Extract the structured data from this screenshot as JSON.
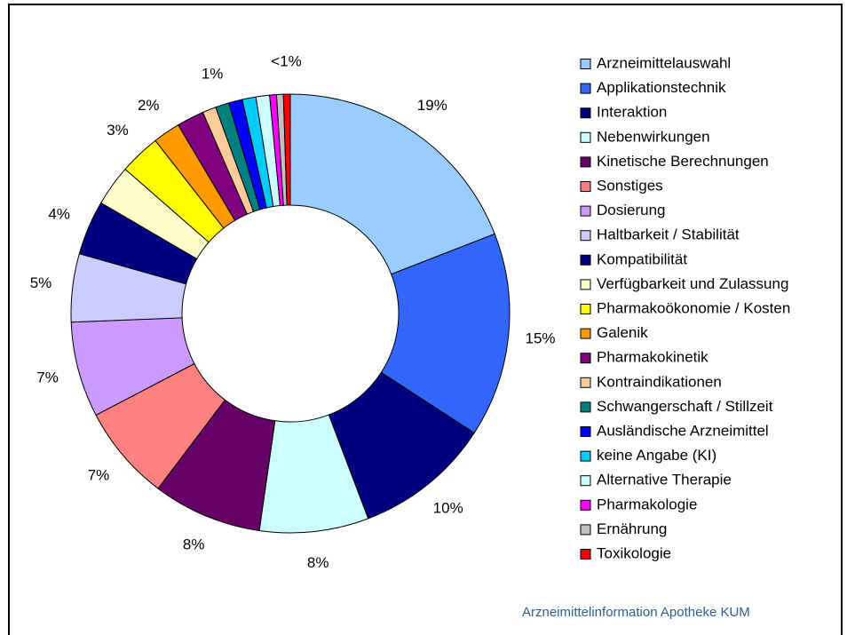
{
  "chart_data": {
    "type": "donut",
    "categories": [
      "Arzneimittelauswahl",
      "Applikationstechnik",
      "Interaktion",
      "Nebenwirkungen",
      "Kinetische Berechnungen",
      "Sonstiges",
      "Dosierung",
      "Haltbarkeit / Stabilität",
      "Kompatibilität",
      "Verfügbarkeit und Zulassung",
      "Pharmakoökonomie / Kosten",
      "Galenik",
      "Pharmakokinetik",
      "Kontraindikationen",
      "Schwangerschaft / Stillzeit",
      "Ausländische Arzneimittel",
      "keine Angabe (KI)",
      "Alternative Therapie",
      "Pharmakologie",
      "Ernährung",
      "Toxikologie"
    ],
    "values": [
      19,
      15,
      10,
      8,
      8,
      7,
      7,
      5,
      4,
      3,
      3,
      2,
      2,
      1,
      1,
      1,
      1,
      1,
      0.5,
      0.5,
      0.5
    ],
    "value_labels": [
      "19%",
      "15%",
      "10%",
      "8%",
      "8%",
      "7%",
      "7%",
      "5%",
      "4%",
      null,
      "3%",
      "2%",
      null,
      null,
      "1%",
      null,
      null,
      null,
      null,
      null,
      "<1%"
    ],
    "colors": [
      "#99ccff",
      "#3366ff",
      "#000080",
      "#ccffff",
      "#660066",
      "#ff8080",
      "#cc99ff",
      "#ccccff",
      "#000080",
      "#ffffcc",
      "#ffff00",
      "#ff9900",
      "#800080",
      "#ffcc99",
      "#008080",
      "#0000ff",
      "#00ccff",
      "#ccffff",
      "#ff00ff",
      "#c0c0c0",
      "#ff0000"
    ],
    "source": "Arzneimittelinformation Apotheke KUM"
  }
}
